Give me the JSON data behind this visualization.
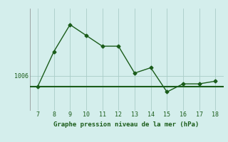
{
  "x": [
    7,
    8,
    9,
    10,
    11,
    12,
    13,
    14,
    15,
    16,
    17,
    18
  ],
  "y": [
    1004.0,
    1010.5,
    1015.5,
    1013.5,
    1011.5,
    1011.5,
    1006.5,
    1007.5,
    1003.0,
    1004.5,
    1004.5,
    1005.0
  ],
  "hline_y": 1004.0,
  "ytick_value": 1006,
  "ytick_label": "1006",
  "xlabel": "Graphe pression niveau de la mer (hPa)",
  "bg_color": "#d4eeec",
  "line_color": "#1a5c1a",
  "grid_color": "#aaccc8",
  "hline_color": "#1a5c1a",
  "xlim": [
    6.5,
    18.5
  ],
  "ylim": [
    999.5,
    1018.5
  ]
}
